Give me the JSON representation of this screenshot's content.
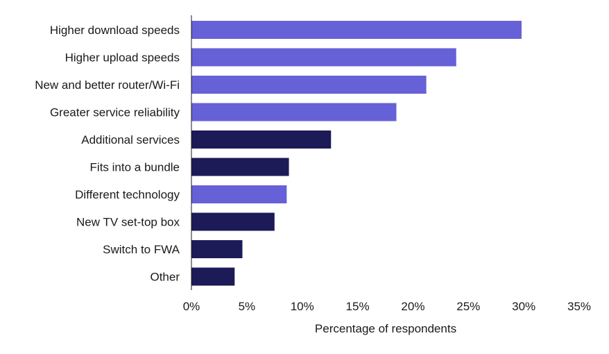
{
  "chart_data": {
    "type": "bar",
    "orientation": "horizontal",
    "categories": [
      "Higher download speeds",
      "Higher upload speeds",
      "New and better router/Wi-Fi",
      "Greater service reliability",
      "Additional services",
      "Fits into a bundle",
      "Different technology",
      "New TV set-top box",
      "Switch to FWA",
      "Other"
    ],
    "values": [
      29.8,
      23.9,
      21.2,
      18.5,
      12.6,
      8.8,
      8.6,
      7.5,
      4.6,
      3.9
    ],
    "bar_colors": [
      "#6661d6",
      "#6661d6",
      "#6661d6",
      "#6661d6",
      "#1c1a57",
      "#1c1a57",
      "#6661d6",
      "#1c1a57",
      "#1c1a57",
      "#1c1a57"
    ],
    "xlabel": "Percentage of respondents",
    "ylabel": "",
    "xlim": [
      0,
      35
    ],
    "xticks": [
      "0%",
      "5%",
      "10%",
      "15%",
      "20%",
      "25%",
      "30%",
      "35%"
    ],
    "xtick_values": [
      0,
      5,
      10,
      15,
      20,
      25,
      30,
      35
    ],
    "grid": false,
    "legend": "none"
  },
  "colors": {
    "light_bar": "#6661d6",
    "dark_bar": "#1c1a57",
    "axis": "#1a1a1a"
  }
}
